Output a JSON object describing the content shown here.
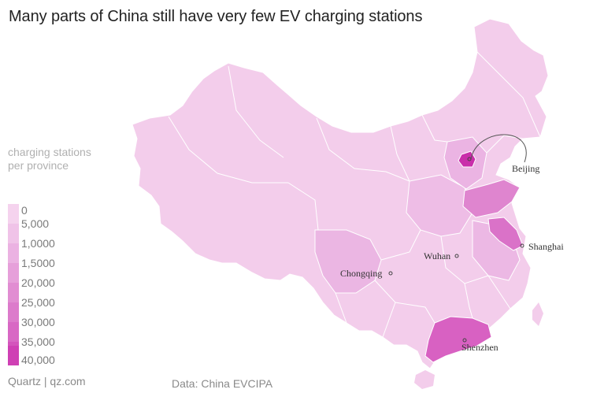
{
  "title": "Many parts of China still have very few EV charging stations",
  "legend": {
    "title": "charging stations per province",
    "items": [
      {
        "label": "0",
        "color": "#f5d3ee"
      },
      {
        "label": "5,000",
        "color": "#f0c3e8"
      },
      {
        "label": "1,0000",
        "color": "#ebb2e2"
      },
      {
        "label": "1,5000",
        "color": "#e6a0da"
      },
      {
        "label": "20,000",
        "color": "#e18dd2"
      },
      {
        "label": "25,000",
        "color": "#dc7bcb"
      },
      {
        "label": "30,000",
        "color": "#d868c4"
      },
      {
        "label": "35,000",
        "color": "#d454bc"
      },
      {
        "label": "40,000",
        "color": "#cf40b4"
      }
    ]
  },
  "cities": {
    "beijing": "Beijing",
    "shanghai": "Shanghai",
    "wuhan": "Wuhan",
    "chongqing": "Chongqing",
    "shenzhen": "Shenzhen"
  },
  "footer": {
    "brand": "Quartz | qz.com",
    "source": "Data: China EVCIPA"
  }
}
